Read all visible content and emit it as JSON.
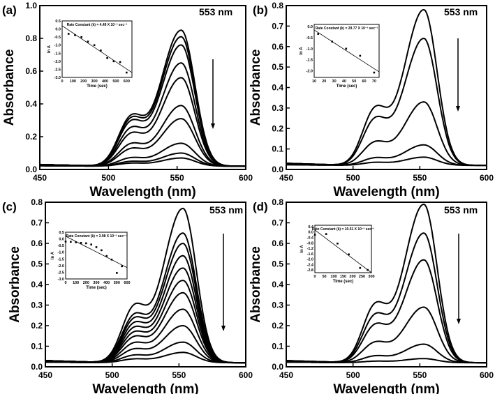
{
  "chart_data": [
    {
      "panel": "(a)",
      "type": "line",
      "xlabel": "Wavelength (nm)",
      "ylabel": "Absorbance",
      "xlim": [
        450,
        600
      ],
      "ylim": [
        0,
        1.0
      ],
      "xticks": [
        "450",
        "500",
        "550",
        "600"
      ],
      "yticks": [
        "0.0",
        "0.2",
        "0.4",
        "0.6",
        "0.8",
        "1.0"
      ],
      "annotation": "553 nm",
      "peak_nm": 553,
      "peak_absorbance": [
        0.83,
        0.79,
        0.74,
        0.63,
        0.54,
        0.37,
        0.29,
        0.14,
        0.08,
        0.05
      ],
      "inset": {
        "title": "Rate Constant (k) = 4.49 X 10⁻³ sec⁻¹",
        "xlabel": "Time (sec)",
        "ylabel": "ln A",
        "xlim": [
          0,
          650
        ],
        "ylim": [
          -3.0,
          0.5
        ],
        "xticks": [
          "0",
          "100",
          "200",
          "300",
          "400",
          "500",
          "600"
        ],
        "yticks": [
          "0.5",
          "0.0",
          "-0.5",
          "-1.0",
          "-1.5",
          "-2.0",
          "-2.5",
          "-3.0"
        ],
        "points": [
          [
            60,
            -0.3
          ],
          [
            120,
            -0.38
          ],
          [
            180,
            -0.5
          ],
          [
            240,
            -0.78
          ],
          [
            300,
            -1.0
          ],
          [
            360,
            -1.33
          ],
          [
            420,
            -1.8
          ],
          [
            480,
            -2.0
          ],
          [
            540,
            -2.05
          ],
          [
            600,
            -2.7
          ]
        ],
        "fit": [
          [
            0,
            0.2
          ],
          [
            650,
            -2.7
          ]
        ]
      }
    },
    {
      "panel": "(b)",
      "type": "line",
      "xlabel": "Wavelength (nm)",
      "ylabel": "Absorbance",
      "xlim": [
        450,
        600
      ],
      "ylim": [
        0,
        0.8
      ],
      "xticks": [
        "450",
        "500",
        "550",
        "600"
      ],
      "yticks": [
        "0.0",
        "0.1",
        "0.2",
        "0.3",
        "0.4",
        "0.5",
        "0.6",
        "0.7",
        "0.8"
      ],
      "annotation": "553 nm",
      "peak_nm": 553,
      "peak_absorbance": [
        0.76,
        0.62,
        0.31,
        0.1,
        0.04
      ],
      "inset": {
        "title": "Rate Constant (k) = 29.77 X 10⁻³ sec⁻¹",
        "xlabel": "Time (sec)",
        "ylabel": "ln A",
        "xlim": [
          10,
          75
        ],
        "ylim": [
          -2.3,
          0.1
        ],
        "xticks": [
          "10",
          "20",
          "30",
          "40",
          "50",
          "60",
          "70"
        ],
        "yticks": [
          "0.0",
          "-0.5",
          "-1.0",
          "-1.5",
          "-2.0"
        ],
        "points": [
          [
            14,
            -0.33
          ],
          [
            28,
            -0.68
          ],
          [
            42,
            -1.0
          ],
          [
            56,
            -1.32
          ],
          [
            70,
            -2.08
          ]
        ],
        "fit": [
          [
            10,
            -0.15
          ],
          [
            75,
            -2.05
          ]
        ]
      }
    },
    {
      "panel": "(c)",
      "type": "line",
      "xlabel": "Wavelength (nm)",
      "ylabel": "Absorbance",
      "xlim": [
        450,
        600
      ],
      "ylim": [
        0,
        0.8
      ],
      "xticks": [
        "450",
        "500",
        "550",
        "600"
      ],
      "yticks": [
        "0.0",
        "0.1",
        "0.2",
        "0.3",
        "0.4",
        "0.5",
        "0.6",
        "0.7",
        "0.8"
      ],
      "annotation": "553 nm",
      "peak_nm": 553,
      "peak_absorbance": [
        0.75,
        0.63,
        0.58,
        0.52,
        0.46,
        0.4,
        0.34,
        0.26,
        0.18,
        0.1,
        0.05
      ],
      "inset": {
        "title": "Rate Constant (k) = 3.98 X 10⁻³ sec⁻¹",
        "xlabel": "Time (sec)",
        "ylabel": "ln A",
        "xlim": [
          0,
          600
        ],
        "ylim": [
          -3.0,
          0.5
        ],
        "xticks": [
          "0",
          "100",
          "200",
          "300",
          "400",
          "500",
          "600"
        ],
        "yticks": [
          "0.5",
          "0.0",
          "-0.5",
          "-1.0",
          "-1.5",
          "-2.0",
          "-2.5",
          "-3.0"
        ],
        "points": [
          [
            0,
            -0.2
          ],
          [
            50,
            -0.22
          ],
          [
            100,
            -0.25
          ],
          [
            150,
            -0.3
          ],
          [
            200,
            -0.33
          ],
          [
            250,
            -0.42
          ],
          [
            300,
            -0.62
          ],
          [
            350,
            -0.85
          ],
          [
            400,
            -1.28
          ],
          [
            450,
            -1.55
          ],
          [
            500,
            -2.55
          ],
          [
            550,
            -2.05
          ]
        ],
        "fit": [
          [
            0,
            0.2
          ],
          [
            600,
            -2.15
          ]
        ]
      }
    },
    {
      "panel": "(d)",
      "type": "line",
      "xlabel": "Wavelength (nm)",
      "ylabel": "Absorbance",
      "xlim": [
        450,
        600
      ],
      "ylim": [
        0,
        0.8
      ],
      "xticks": [
        "450",
        "500",
        "550",
        "600"
      ],
      "yticks": [
        "0.0",
        "0.1",
        "0.2",
        "0.3",
        "0.4",
        "0.5",
        "0.6",
        "0.7",
        "0.8"
      ],
      "annotation": "553 nm",
      "peak_nm": 553,
      "peak_absorbance": [
        0.77,
        0.63,
        0.5,
        0.27,
        0.09,
        0.02
      ],
      "inset": {
        "title": "Rate Constant (k) = 10.51 X 10⁻³ sec⁻¹",
        "xlabel": "Time (sec)",
        "ylabel": "ln A",
        "xlim": [
          0,
          300
        ],
        "ylim": [
          -3.0,
          0.5
        ],
        "xticks": [
          "0",
          "50",
          "100",
          "150",
          "200",
          "250",
          "300"
        ],
        "yticks": [
          "0.4",
          "0.0",
          "-0.4",
          "-0.8",
          "-1.2",
          "-1.6",
          "-2.0",
          "-2.4",
          "-2.8"
        ],
        "points": [
          [
            0,
            -0.2
          ],
          [
            60,
            -0.15
          ],
          [
            120,
            -0.85
          ],
          [
            180,
            -1.65
          ],
          [
            240,
            -2.65
          ],
          [
            280,
            -2.8
          ]
        ],
        "fit": [
          [
            0,
            0.15
          ],
          [
            300,
            -3.0
          ]
        ]
      }
    }
  ]
}
